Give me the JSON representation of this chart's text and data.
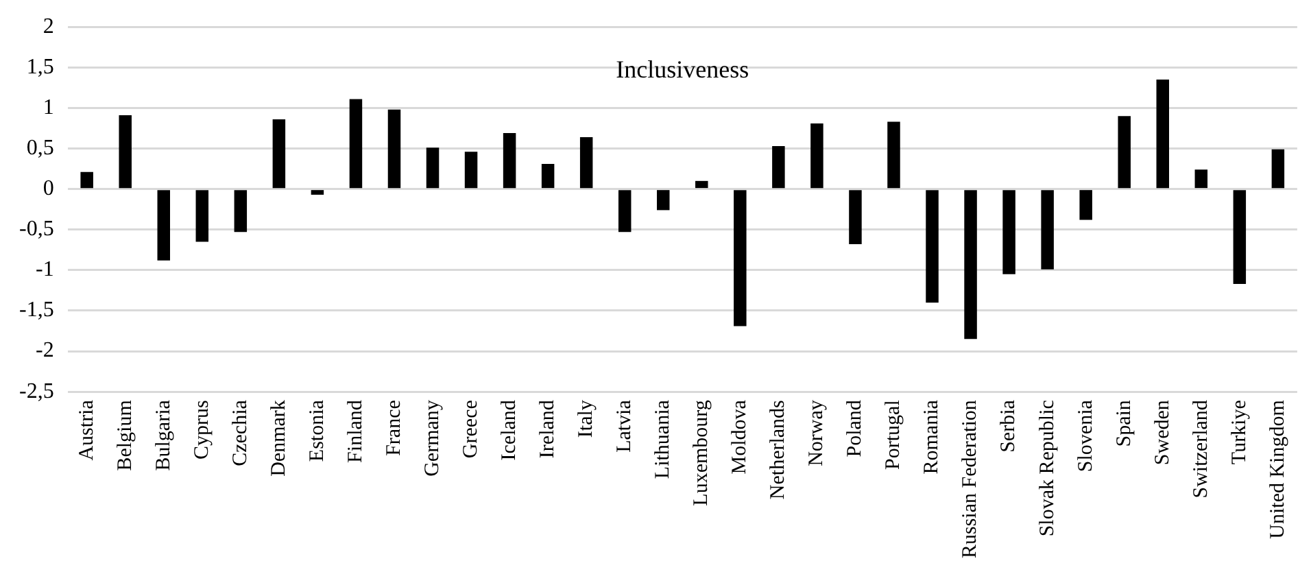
{
  "chart_data": {
    "type": "bar",
    "title": "Inclusiveness",
    "categories": [
      "Austria",
      "Belgium",
      "Bulgaria",
      "Cyprus",
      "Czechia",
      "Denmark",
      "Estonia",
      "Finland",
      "France",
      "Germany",
      "Greece",
      "Iceland",
      "Ireland",
      "Italy",
      "Latvia",
      "Lithuania",
      "Luxembourg",
      "Moldova",
      "Netherlands",
      "Norway",
      "Poland",
      "Portugal",
      "Romania",
      "Russian Federation",
      "Serbia",
      "Slovak Republic",
      "Slovenia",
      "Spain",
      "Sweden",
      "Switzerland",
      "Turkiye",
      "United Kingdom"
    ],
    "values": [
      0.21,
      0.91,
      -0.88,
      -0.65,
      -0.53,
      0.86,
      -0.07,
      1.11,
      0.98,
      0.51,
      0.46,
      0.69,
      0.31,
      0.64,
      -0.53,
      -0.26,
      0.1,
      -1.69,
      0.53,
      0.81,
      -0.68,
      0.83,
      -1.4,
      -1.85,
      -1.05,
      -0.99,
      -0.38,
      0.9,
      1.35,
      0.24,
      -1.17,
      0.49
    ],
    "color": "#000000",
    "ylim": [
      -2.5,
      2
    ],
    "yticks": [
      {
        "value": -2.5,
        "label": "-2,5"
      },
      {
        "value": -2,
        "label": "-2"
      },
      {
        "value": -1.5,
        "label": "-1,5"
      },
      {
        "value": -1,
        "label": "-1"
      },
      {
        "value": -0.5,
        "label": "-0,5"
      },
      {
        "value": 0,
        "label": "0"
      },
      {
        "value": 0.5,
        "label": "0,5"
      },
      {
        "value": 1,
        "label": "1"
      },
      {
        "value": 1.5,
        "label": "1,5"
      },
      {
        "value": 2,
        "label": "2"
      }
    ],
    "grid": "y",
    "legend": false
  }
}
